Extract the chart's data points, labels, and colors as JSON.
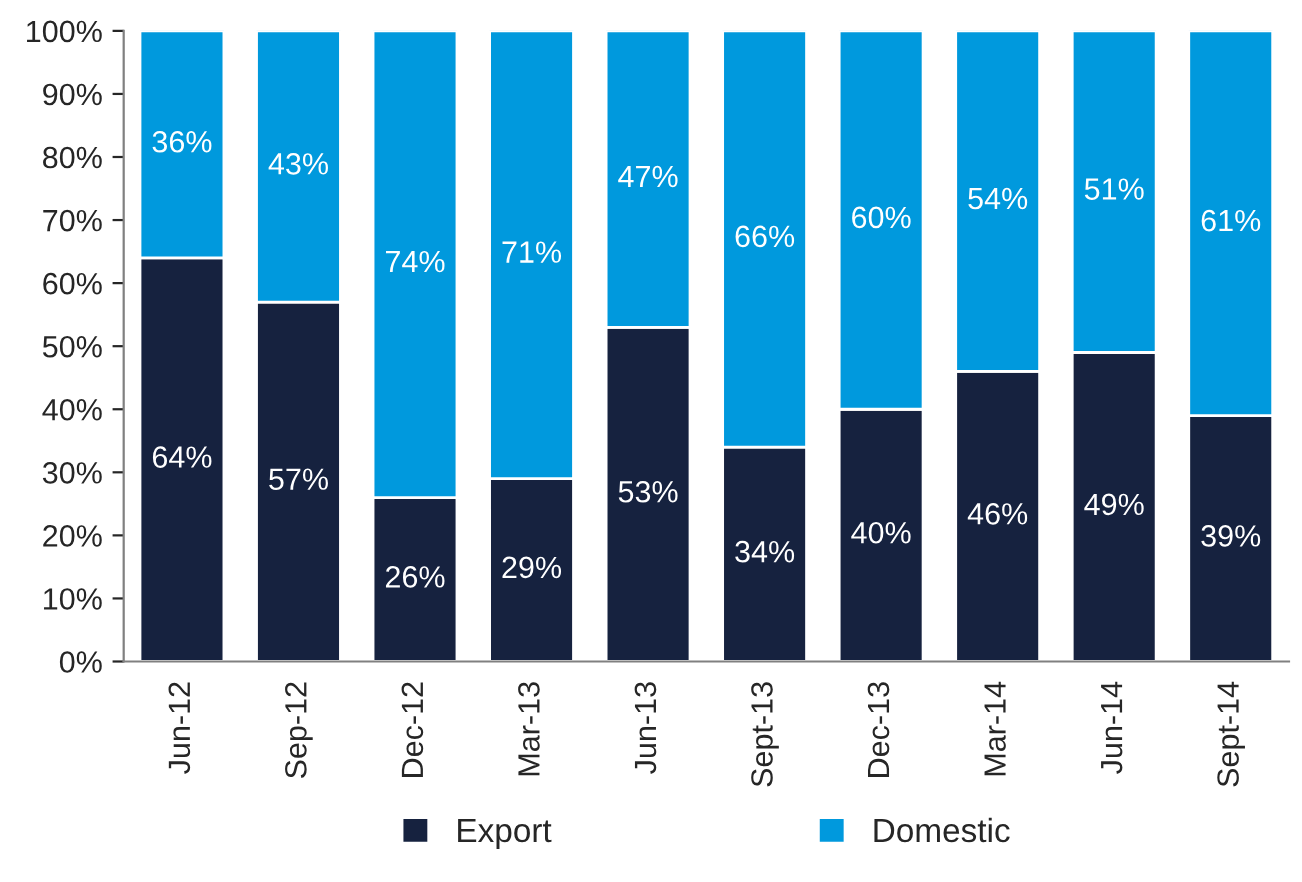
{
  "chart_data": {
    "type": "bar",
    "stacked": true,
    "categories": [
      "Jun-12",
      "Sep-12",
      "Dec-12",
      "Mar-13",
      "Jun-13",
      "Sept-13",
      "Dec-13",
      "Mar-14",
      "Jun-14",
      "Sept-14"
    ],
    "series": [
      {
        "name": "Export",
        "color": "#16223f",
        "values": [
          64,
          57,
          26,
          29,
          53,
          34,
          40,
          46,
          49,
          39
        ],
        "value_labels": [
          "64%",
          "57%",
          "26%",
          "29%",
          "53%",
          "34%",
          "40%",
          "46%",
          "49%",
          "39%"
        ]
      },
      {
        "name": "Domestic",
        "color": "#0099dd",
        "values": [
          36,
          43,
          74,
          71,
          47,
          66,
          60,
          54,
          51,
          61
        ],
        "value_labels": [
          "36%",
          "43%",
          "74%",
          "71%",
          "47%",
          "66%",
          "60%",
          "54%",
          "51%",
          "61%"
        ]
      }
    ],
    "ylim": [
      0,
      100
    ],
    "yticks": [
      {
        "value": 0,
        "label": "0%"
      },
      {
        "value": 10,
        "label": "10%"
      },
      {
        "value": 20,
        "label": "20%"
      },
      {
        "value": 30,
        "label": "30%"
      },
      {
        "value": 40,
        "label": "40%"
      },
      {
        "value": 50,
        "label": "50%"
      },
      {
        "value": 60,
        "label": "60%"
      },
      {
        "value": 70,
        "label": "70%"
      },
      {
        "value": 80,
        "label": "80%"
      },
      {
        "value": 90,
        "label": "90%"
      },
      {
        "value": 100,
        "label": "100%"
      }
    ],
    "grid": false,
    "legend": "bottom"
  }
}
